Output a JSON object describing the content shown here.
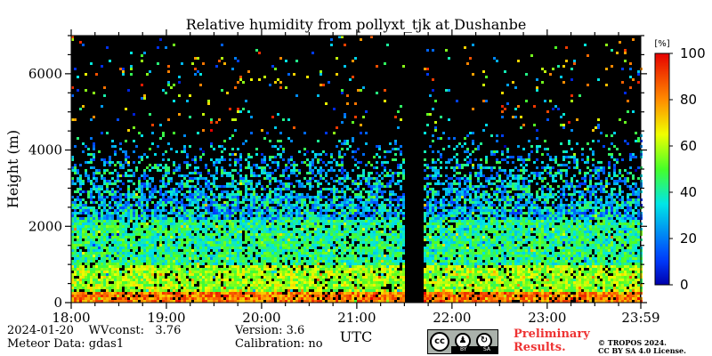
{
  "chart_data": {
    "type": "heatmap",
    "title": "Relative humidity from pollyxt_tjk at Dushanbe",
    "xlabel": "UTC",
    "ylabel": "Height (m)",
    "x_ticks": [
      "18:00",
      "19:00",
      "20:00",
      "21:00",
      "22:00",
      "23:00",
      "23:59"
    ],
    "y_ticks": [
      0,
      2000,
      4000,
      6000
    ],
    "xlim": [
      "18:00",
      "23:59"
    ],
    "ylim": [
      0,
      7000
    ],
    "colorbar": {
      "unit": "[%]",
      "ticks": [
        0,
        20,
        40,
        60,
        80,
        100
      ],
      "range": [
        0,
        100
      ],
      "colormap": "jet"
    },
    "no_data_interval": [
      "21:32",
      "21:42"
    ],
    "layers": [
      {
        "height_range": [
          0,
          300
        ],
        "relative_humidity_range": [
          70,
          95
        ]
      },
      {
        "height_range": [
          300,
          1000
        ],
        "relative_humidity_range": [
          45,
          70
        ]
      },
      {
        "height_range": [
          1000,
          2200
        ],
        "relative_humidity_range": [
          30,
          55
        ]
      },
      {
        "height_range": [
          2200,
          4500
        ],
        "relative_humidity_range": [
          10,
          50
        ]
      }
    ],
    "background_color": "#000000"
  },
  "footer": {
    "date": "2024-01-20",
    "wvconst_label": "WVconst:",
    "wvconst_value": "3.76",
    "meteor": "Meteor Data: gdas1",
    "version": "Version: 3.6",
    "calibration": "Calibration: no",
    "preliminary_line1": "Preliminary",
    "preliminary_line2": "Results.",
    "copyright_line1": "© TROPOS 2024.",
    "copyright_line2": "CC BY SA 4.0 License.",
    "cc_label": "cc",
    "cc_by": "BY",
    "cc_sa": "SA"
  }
}
